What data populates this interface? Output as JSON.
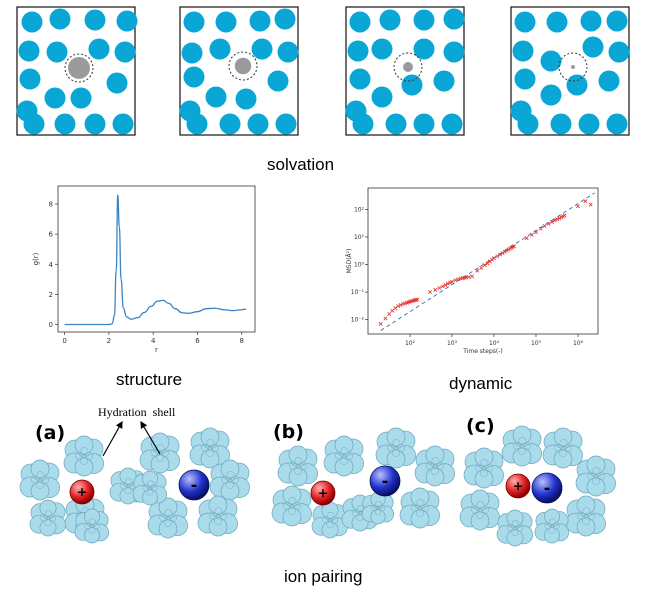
{
  "solvation": {
    "caption": "solvation",
    "panels": [
      {
        "solute_scale": 1.0
      },
      {
        "solute_scale": 0.75
      },
      {
        "solute_scale": 0.45
      },
      {
        "solute_scale": 0.18
      }
    ],
    "colors": {
      "solvent": "#0aa6d6",
      "solute": "#9a9a9a"
    }
  },
  "structure": {
    "caption": "structure"
  },
  "dynamic": {
    "caption": "dynamic"
  },
  "ion_pairing": {
    "caption": "ion pairing",
    "hydration_label": "Hydration  shell",
    "panels": [
      {
        "label": "(a)",
        "cation": "+",
        "anion": "-"
      },
      {
        "label": "(b)",
        "cation": "+",
        "anion": "-"
      },
      {
        "label": "(c)",
        "cation": "+",
        "anion": "-"
      }
    ],
    "colors": {
      "cation": "#e02020",
      "anion": "#2233cc",
      "water": "#a9dbea"
    }
  },
  "chart_data": [
    {
      "type": "line",
      "title": "",
      "xlabel": "r",
      "ylabel": "g(r)",
      "xlim": [
        -0.3,
        8.6
      ],
      "ylim": [
        -0.5,
        9.2
      ],
      "xticks": [
        0,
        2,
        4,
        6,
        8
      ],
      "yticks": [
        0,
        2,
        4,
        6,
        8
      ],
      "grid": false,
      "series": [
        {
          "color": "#3b84c4",
          "x": [
            0,
            1.5,
            2.0,
            2.15,
            2.25,
            2.33,
            2.4,
            2.47,
            2.55,
            2.65,
            2.8,
            3.0,
            3.3,
            3.6,
            3.9,
            4.2,
            4.45,
            4.7,
            5.0,
            5.3,
            5.6,
            6.0,
            6.4,
            6.8,
            7.2,
            7.6,
            8.0,
            8.2
          ],
          "y": [
            0,
            0,
            0,
            0.05,
            0.6,
            3.6,
            8.6,
            6.5,
            3.0,
            1.1,
            0.5,
            0.35,
            0.45,
            0.8,
            1.2,
            1.55,
            1.6,
            1.4,
            1.05,
            0.78,
            0.74,
            0.85,
            1.05,
            1.08,
            0.98,
            0.92,
            0.98,
            1.02
          ]
        }
      ]
    },
    {
      "type": "scatter",
      "title": "",
      "xlabel": "Time steps(-)",
      "ylabel": "MSD(Å²)",
      "xscale": "log",
      "yscale": "log",
      "xlim": [
        10.0,
        3000000.0
      ],
      "ylim": [
        0.003,
        600.0
      ],
      "xticks": [
        "10²",
        "10³",
        "10⁴",
        "10⁵",
        "10⁶"
      ],
      "yticks": [
        "10⁻²",
        "10⁻¹",
        "10⁰",
        "10¹",
        "10²"
      ],
      "grid": false,
      "series": [
        {
          "marker": "x",
          "color": "#e8302a",
          "x": [
            20,
            26,
            32,
            38,
            45,
            52,
            60,
            68,
            76,
            84,
            92,
            100,
            110,
            120,
            130,
            140,
            150,
            300,
            400,
            500,
            600,
            700,
            800,
            900,
            1000,
            1200,
            1400,
            1600,
            1800,
            2000,
            2200,
            2500,
            3000,
            4000,
            5000,
            6000,
            7000,
            8000,
            9000,
            10000,
            12000,
            14000,
            16000,
            18000,
            20000,
            22000,
            24000,
            26000,
            28000,
            30000,
            60000,
            80000,
            100000,
            130000,
            160000,
            200000,
            240000,
            280000,
            320000,
            360000,
            400000,
            440000,
            480000,
            1000000,
            1500000,
            2000000
          ],
          "y": [
            0.007,
            0.011,
            0.016,
            0.021,
            0.026,
            0.031,
            0.034,
            0.037,
            0.039,
            0.041,
            0.043,
            0.045,
            0.047,
            0.049,
            0.051,
            0.052,
            0.054,
            0.1,
            0.12,
            0.14,
            0.16,
            0.18,
            0.2,
            0.22,
            0.24,
            0.27,
            0.29,
            0.31,
            0.32,
            0.33,
            0.34,
            0.35,
            0.37,
            0.6,
            0.75,
            0.95,
            1.1,
            1.3,
            1.5,
            1.7,
            2.0,
            2.3,
            2.6,
            2.9,
            3.2,
            3.5,
            3.8,
            4.1,
            4.4,
            4.6,
            9,
            12,
            15,
            20,
            25,
            30,
            35,
            40,
            44,
            48,
            52,
            56,
            60,
            130,
            200,
            150
          ]
        },
        {
          "name": "",
          "style": "dashed",
          "color": "#2f6fb7",
          "x": [
            20,
            2500000
          ],
          "y": [
            0.004,
            400
          ]
        }
      ]
    }
  ]
}
